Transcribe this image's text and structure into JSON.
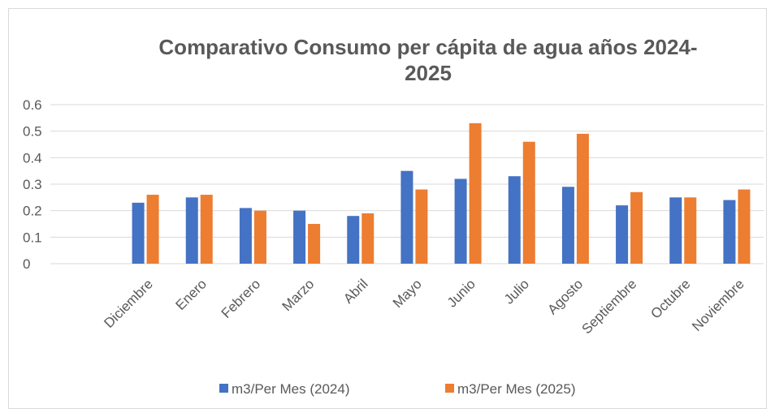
{
  "chart_data": {
    "type": "bar",
    "title": "Comparativo Consumo per cápita de agua años 2024-2025",
    "categories": [
      "Diciembre",
      "Enero",
      "Febrero",
      "Marzo",
      "Abril",
      "Mayo",
      "Junio",
      "Julio",
      "Agosto",
      "Septiembre",
      "Octubre",
      "Noviembre"
    ],
    "series": [
      {
        "name": "m3/Per Mes (2024)",
        "color": "#4472c4",
        "values": [
          0.23,
          0.25,
          0.21,
          0.2,
          0.18,
          0.35,
          0.32,
          0.33,
          0.29,
          0.22,
          0.25,
          0.24
        ]
      },
      {
        "name": "m3/Per Mes (2025)",
        "color": "#ed7d31",
        "values": [
          0.26,
          0.26,
          0.2,
          0.15,
          0.19,
          0.28,
          0.53,
          0.46,
          0.49,
          0.27,
          0.25,
          0.28
        ]
      }
    ],
    "ylim": [
      0,
      0.6
    ],
    "yticks": [
      0,
      0.1,
      0.2,
      0.3,
      0.4,
      0.5,
      0.6
    ],
    "grid": true,
    "legend": "bottom"
  }
}
